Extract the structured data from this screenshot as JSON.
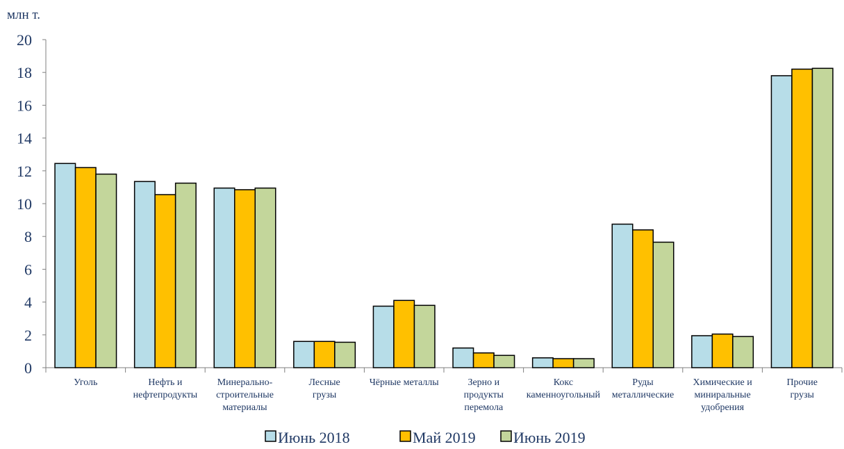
{
  "chart_data": {
    "type": "bar",
    "unit_label": "млн т.",
    "categories": [
      [
        "Уголь"
      ],
      [
        "Нефть и",
        "нефтепродукты"
      ],
      [
        "Минерально-",
        "строительные",
        "материалы"
      ],
      [
        "Лесные",
        "грузы"
      ],
      [
        "Чёрные металлы"
      ],
      [
        "Зерно и",
        "продукты",
        "перемола"
      ],
      [
        "Кокс",
        "каменноугольный"
      ],
      [
        "Руды",
        "металлические"
      ],
      [
        "Химические и",
        "миниральные",
        "удобрения"
      ],
      [
        "Прочие",
        "грузы"
      ]
    ],
    "series": [
      {
        "name": "Июнь 2018",
        "color": "#b7dde8",
        "values": [
          12.45,
          11.35,
          10.95,
          1.6,
          3.75,
          1.2,
          0.6,
          8.75,
          1.95,
          17.8
        ]
      },
      {
        "name": "Май 2019",
        "color": "#ffc000",
        "values": [
          12.2,
          10.55,
          10.85,
          1.6,
          4.1,
          0.9,
          0.55,
          8.4,
          2.05,
          18.2
        ]
      },
      {
        "name": "Июнь 2019",
        "color": "#c3d69b",
        "values": [
          11.8,
          11.25,
          10.95,
          1.55,
          3.8,
          0.75,
          0.55,
          7.65,
          1.9,
          18.25
        ]
      }
    ],
    "ylim": [
      0,
      20
    ],
    "yticks": [
      0,
      2,
      4,
      6,
      8,
      10,
      12,
      14,
      16,
      18,
      20
    ],
    "grid": false,
    "legend_position": "bottom"
  }
}
